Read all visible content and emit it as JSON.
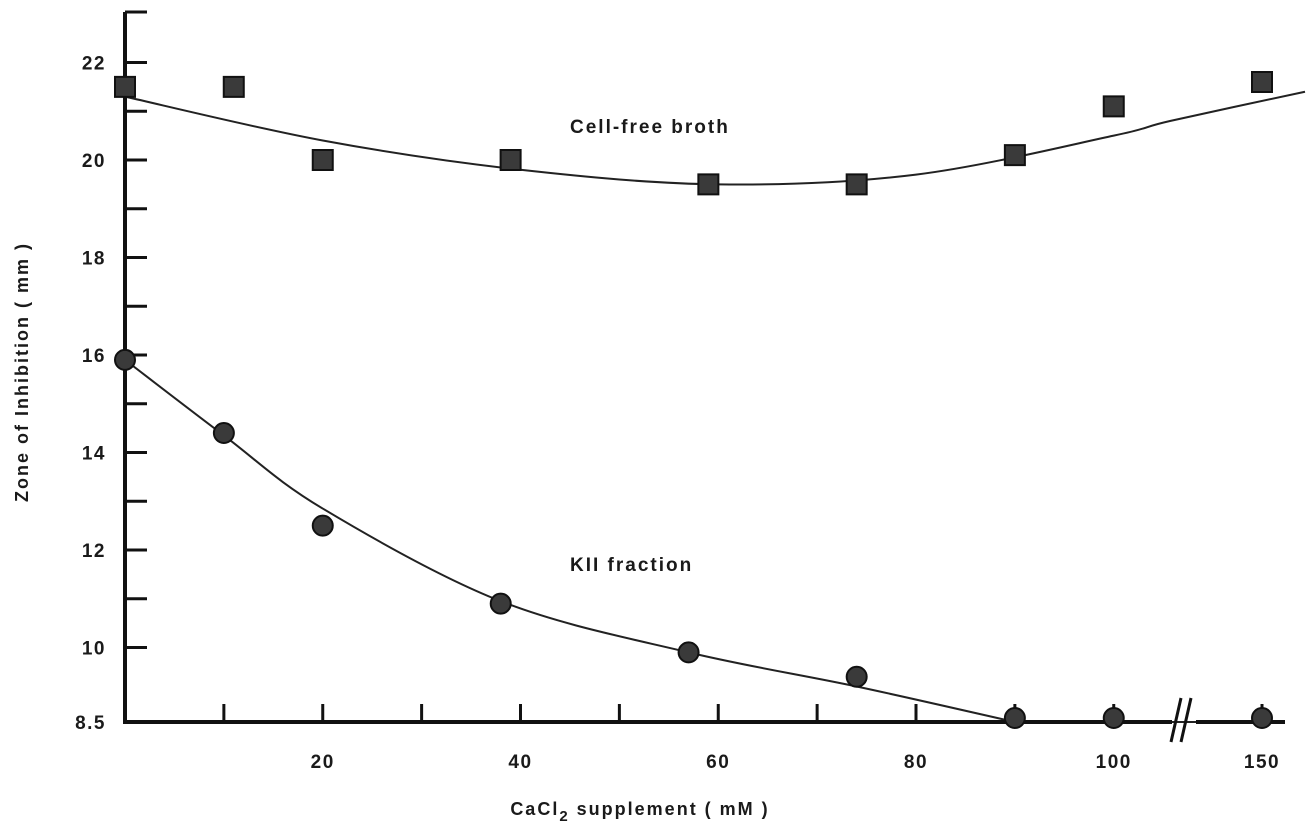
{
  "chart_data": {
    "type": "scatter",
    "xlabel_prefix": "CaCl",
    "xlabel_sub": "2",
    "xlabel_suffix": " supplement ( mM )",
    "ylabel": "Zone of Inhibition ( mm )",
    "xlim": [
      0,
      150
    ],
    "ylim": [
      8.5,
      23
    ],
    "x_axis_break": "between 100 and 150",
    "x_tick_labels": [
      "20",
      "40",
      "60",
      "80",
      "100",
      "150"
    ],
    "y_tick_labels": [
      "8.5",
      "10",
      "12",
      "14",
      "16",
      "18",
      "20",
      "22"
    ],
    "grid": false,
    "series": [
      {
        "name": "Cell-free broth",
        "marker": "square",
        "x": [
          0,
          11,
          20,
          39,
          59,
          74,
          90,
          100,
          150
        ],
        "y": [
          21.5,
          21.5,
          20.0,
          20.0,
          19.5,
          19.5,
          20.1,
          21.1,
          21.6
        ]
      },
      {
        "name": "KII fraction",
        "marker": "circle",
        "x": [
          0,
          10,
          20,
          38,
          57,
          74,
          90,
          100,
          150
        ],
        "y": [
          15.9,
          14.4,
          12.5,
          10.9,
          9.9,
          9.4,
          8.5,
          8.5,
          8.5
        ]
      }
    ]
  }
}
